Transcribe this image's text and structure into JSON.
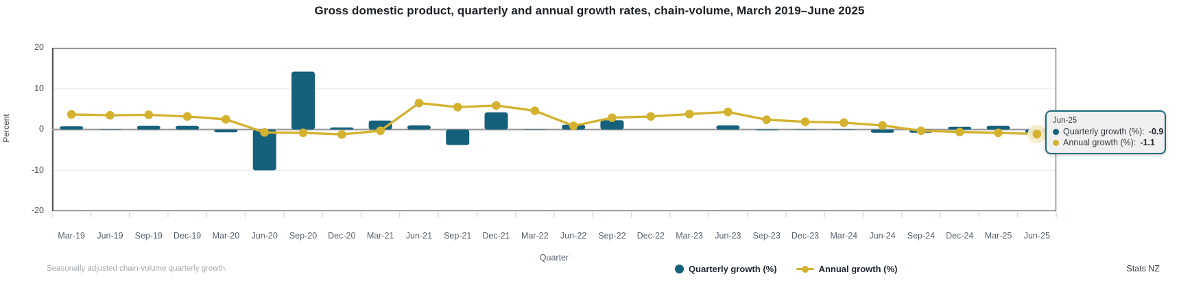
{
  "title": "Gross domestic product, quarterly and annual growth rates, chain-volume, March 2019–June 2025",
  "y_axis": {
    "title": "Percent",
    "ticks": [
      20,
      10,
      0,
      -10,
      -20
    ]
  },
  "x_axis": {
    "title": "Quarter"
  },
  "legend": {
    "quarterly_label": "Quarterly growth (%)",
    "annual_label": "Annual growth (%)"
  },
  "footer": {
    "footnote": "Seasonally adjusted chain-volume quarterly growth.",
    "source": "Stats NZ"
  },
  "tooltip": {
    "title": "Jun-25",
    "rows": [
      {
        "label": "Quarterly growth (%): ",
        "value": "-0.9",
        "color": "#15607A"
      },
      {
        "label": "Annual growth (%): ",
        "value": "-1.1",
        "color": "#D4B230"
      }
    ]
  },
  "colors": {
    "bar_teal": "#15607A",
    "line_gold": "#D4B230",
    "highlight_halo": "#F4EBC9",
    "zero_line": "#9E9E9E",
    "gridline": "#EBEBEB",
    "plot_border": "#7C7C7C",
    "axis_text": "#57606D",
    "tick_mark": "#C9D4E4"
  },
  "chart_data": {
    "type": "bar",
    "title": "Gross domestic product, quarterly and annual growth rates, chain-volume, March 2019–June 2025",
    "xlabel": "Quarter",
    "ylabel": "Percent",
    "ylim": [
      -20,
      20
    ],
    "grid": true,
    "legend_position": "bottom",
    "categories": [
      "Mar-19",
      "Jun-19",
      "Sep-19",
      "Dec-19",
      "Mar-20",
      "Jun-20",
      "Sep-20",
      "Dec-20",
      "Mar-21",
      "Jun-21",
      "Sep-21",
      "Dec-21",
      "Mar-22",
      "Jun-22",
      "Sep-22",
      "Dec-22",
      "Mar-23",
      "Jun-23",
      "Sep-23",
      "Dec-23",
      "Mar-24",
      "Jun-24",
      "Sep-24",
      "Dec-24",
      "Mar-25",
      "Jun-25"
    ],
    "series": [
      {
        "name": "Quarterly growth (%)",
        "type": "bar",
        "color": "#15607A",
        "values": [
          0.8,
          0.1,
          0.9,
          0.9,
          -0.7,
          -10.0,
          14.2,
          0.5,
          2.2,
          1.0,
          -3.8,
          4.2,
          0.1,
          1.2,
          2.3,
          0.0,
          0.0,
          1.0,
          -0.2,
          -0.1,
          0.1,
          -0.8,
          -0.8,
          0.7,
          0.9,
          -0.9
        ]
      },
      {
        "name": "Annual growth (%)",
        "type": "line",
        "color": "#D4B230",
        "values": [
          3.7,
          3.5,
          3.6,
          3.2,
          2.5,
          -0.7,
          -0.8,
          -1.2,
          -0.3,
          6.5,
          5.5,
          5.9,
          4.6,
          0.9,
          2.9,
          3.2,
          3.8,
          4.3,
          2.4,
          1.9,
          1.7,
          1.0,
          -0.3,
          -0.6,
          -0.8,
          -1.1
        ]
      }
    ],
    "highlight": {
      "category": "Jun-25",
      "index": 25
    }
  }
}
